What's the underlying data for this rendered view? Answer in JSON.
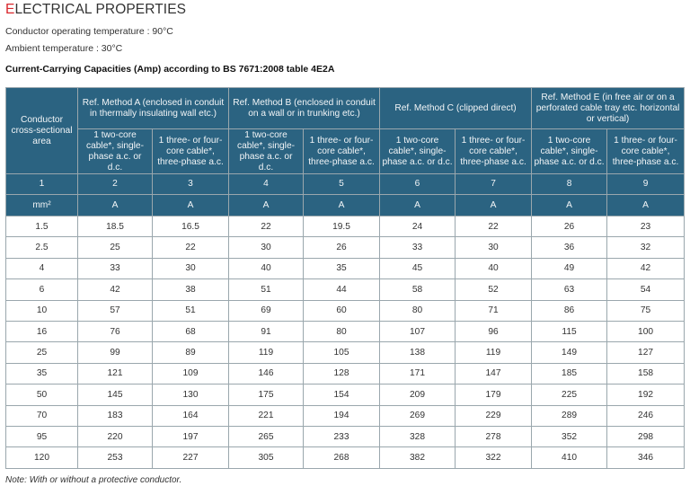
{
  "title_first_letter": "E",
  "title_rest": "LECTRICAL PROPERTIES",
  "conductor_temp": "Conductor operating temperature : 90°C",
  "ambient_temp": "Ambient temperature : 30°C",
  "table_caption": "Current-Carrying Capacities (Amp) according to BS 7671:2008 table 4E2A",
  "header": {
    "area": "Conductor cross-sectional area",
    "methods": [
      "Ref. Method A (enclosed in conduit in thermally insulating wall etc.)",
      "Ref. Method B (enclosed in conduit on a wall or in trunking etc.)",
      "Ref. Method C (clipped direct)",
      "Ref. Method E (in free air or on a perforated cable tray etc. horizontal or vertical)"
    ],
    "sub": [
      "1 two-core cable*, single-phase a.c. or d.c.",
      "1 three- or four-core cable*, three-phase a.c.",
      "1 two-core cable*, single-phase a.c. or d.c.",
      "1 three- or four-core cable*, three-phase a.c.",
      "1 two-core cable*, single-phase a.c. or d.c.",
      "1 three- or four-core cable*, three-phase a.c.",
      "1 two-core cable*, single-phase a.c. or d.c.",
      "1 three- or four-core cable*, three-phase a.c."
    ],
    "numbers": [
      "1",
      "2",
      "3",
      "4",
      "5",
      "6",
      "7",
      "8",
      "9"
    ],
    "units": [
      "mm²",
      "A",
      "A",
      "A",
      "A",
      "A",
      "A",
      "A",
      "A"
    ]
  },
  "rows": [
    [
      "1.5",
      "18.5",
      "16.5",
      "22",
      "19.5",
      "24",
      "22",
      "26",
      "23"
    ],
    [
      "2.5",
      "25",
      "22",
      "30",
      "26",
      "33",
      "30",
      "36",
      "32"
    ],
    [
      "4",
      "33",
      "30",
      "40",
      "35",
      "45",
      "40",
      "49",
      "42"
    ],
    [
      "6",
      "42",
      "38",
      "51",
      "44",
      "58",
      "52",
      "63",
      "54"
    ],
    [
      "10",
      "57",
      "51",
      "69",
      "60",
      "80",
      "71",
      "86",
      "75"
    ],
    [
      "16",
      "76",
      "68",
      "91",
      "80",
      "107",
      "96",
      "115",
      "100"
    ],
    [
      "25",
      "99",
      "89",
      "119",
      "105",
      "138",
      "119",
      "149",
      "127"
    ],
    [
      "35",
      "121",
      "109",
      "146",
      "128",
      "171",
      "147",
      "185",
      "158"
    ],
    [
      "50",
      "145",
      "130",
      "175",
      "154",
      "209",
      "179",
      "225",
      "192"
    ],
    [
      "70",
      "183",
      "164",
      "221",
      "194",
      "269",
      "229",
      "289",
      "246"
    ],
    [
      "95",
      "220",
      "197",
      "265",
      "233",
      "328",
      "278",
      "352",
      "298"
    ],
    [
      "120",
      "253",
      "227",
      "305",
      "268",
      "382",
      "322",
      "410",
      "346"
    ]
  ],
  "note": "Note: With or without a protective conductor."
}
